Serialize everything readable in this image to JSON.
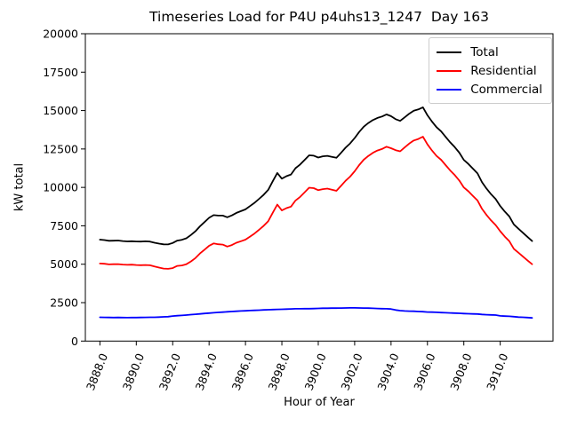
{
  "chart_data": {
    "type": "line",
    "title": "Timeseries Load for P4U p4uhs13_1247  Day 163",
    "xlabel": "Hour of Year",
    "ylabel": "kW total",
    "xlim": [
      3887.2,
      3912.9
    ],
    "ylim": [
      0,
      20000
    ],
    "grid": false,
    "legend_position": "upper-right",
    "x_start": 3888.0,
    "x_step": 0.25,
    "x_tick_values": [
      3888,
      3890,
      3892,
      3894,
      3896,
      3898,
      3900,
      3902,
      3904,
      3906,
      3908,
      3910
    ],
    "x_tick_labels": [
      "3888.0",
      "3890.0",
      "3892.0",
      "3894.0",
      "3896.0",
      "3898.0",
      "3900.0",
      "3902.0",
      "3904.0",
      "3906.0",
      "3908.0",
      "3910.0"
    ],
    "y_tick_values": [
      0,
      2500,
      5000,
      7500,
      10000,
      12500,
      15000,
      17500,
      20000
    ],
    "series": [
      {
        "name": "Total",
        "color": "#000000",
        "values": [
          6600,
          6570,
          6525,
          6530,
          6545,
          6510,
          6485,
          6500,
          6480,
          6475,
          6490,
          6475,
          6400,
          6340,
          6295,
          6290,
          6380,
          6540,
          6590,
          6690,
          6900,
          7145,
          7470,
          7745,
          8020,
          8195,
          8165,
          8165,
          8055,
          8175,
          8340,
          8455,
          8570,
          8785,
          9000,
          9260,
          9525,
          9840,
          10400,
          10940,
          10570,
          10730,
          10840,
          11250,
          11485,
          11790,
          12090,
          12065,
          11945,
          12025,
          12055,
          11990,
          11925,
          12250,
          12585,
          12860,
          13210,
          13605,
          13950,
          14190,
          14380,
          14520,
          14610,
          14750,
          14635,
          14440,
          14330,
          14560,
          14795,
          14990,
          15075,
          15210,
          14690,
          14280,
          13920,
          13655,
          13290,
          12930,
          12620,
          12260,
          11790,
          11530,
          11220,
          10910,
          10330,
          9915,
          9555,
          9245,
          8790,
          8425,
          8110,
          7590,
          7310,
          7045,
          6780,
          6510
        ]
      },
      {
        "name": "Residential",
        "color": "#ff0000",
        "values": [
          5050,
          5030,
          4990,
          5000,
          5010,
          4980,
          4960,
          4970,
          4950,
          4940,
          4950,
          4930,
          4850,
          4780,
          4720,
          4700,
          4750,
          4890,
          4920,
          5000,
          5180,
          5400,
          5700,
          5950,
          6200,
          6350,
          6300,
          6280,
          6150,
          6250,
          6400,
          6500,
          6600,
          6800,
          7000,
          7250,
          7500,
          7800,
          8350,
          8880,
          8500,
          8650,
          8750,
          9150,
          9380,
          9680,
          9980,
          9950,
          9820,
          9890,
          9920,
          9850,
          9780,
          10100,
          10430,
          10700,
          11050,
          11450,
          11800,
          12050,
          12250,
          12400,
          12500,
          12650,
          12550,
          12420,
          12350,
          12600,
          12850,
          13050,
          13150,
          13300,
          12800,
          12400,
          12050,
          11800,
          11450,
          11100,
          10800,
          10450,
          10000,
          9750,
          9450,
          9150,
          8600,
          8200,
          7850,
          7550,
          7150,
          6800,
          6500,
          6000,
          5750,
          5500,
          5250,
          5000
        ]
      },
      {
        "name": "Commercial",
        "color": "#0000ff",
        "values": [
          1550,
          1540,
          1535,
          1530,
          1535,
          1530,
          1525,
          1530,
          1530,
          1535,
          1540,
          1545,
          1550,
          1560,
          1575,
          1590,
          1630,
          1650,
          1670,
          1690,
          1720,
          1745,
          1770,
          1795,
          1820,
          1845,
          1865,
          1885,
          1905,
          1925,
          1940,
          1955,
          1970,
          1985,
          2000,
          2010,
          2025,
          2040,
          2050,
          2060,
          2070,
          2080,
          2090,
          2100,
          2105,
          2110,
          2110,
          2115,
          2125,
          2135,
          2135,
          2140,
          2145,
          2150,
          2155,
          2160,
          2160,
          2155,
          2150,
          2140,
          2130,
          2120,
          2110,
          2100,
          2085,
          2020,
          1980,
          1960,
          1945,
          1940,
          1925,
          1910,
          1890,
          1880,
          1870,
          1855,
          1840,
          1830,
          1820,
          1810,
          1790,
          1780,
          1770,
          1760,
          1730,
          1715,
          1705,
          1695,
          1640,
          1625,
          1610,
          1590,
          1560,
          1545,
          1530,
          1510
        ]
      }
    ]
  }
}
